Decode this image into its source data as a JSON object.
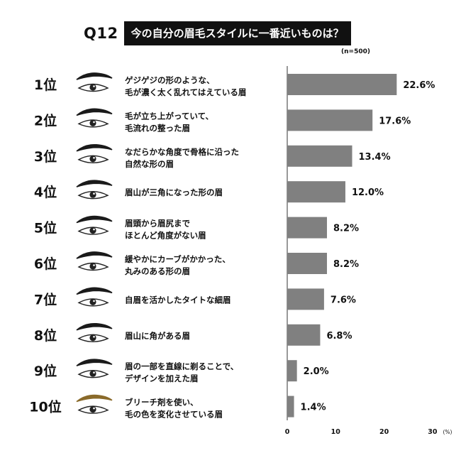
{
  "header": {
    "question_number": "Q12",
    "question_text": "今の自分の眉毛スタイルに一番近いものは？",
    "sample_size": "(n=500)"
  },
  "chart_data": {
    "type": "bar",
    "orientation": "horizontal",
    "unit": "(%)",
    "xlim": [
      0,
      30
    ],
    "xticks": [
      "0",
      "10",
      "20",
      "30"
    ],
    "grid": false,
    "bar_color": "#808080",
    "categories": [
      {
        "rank": "1位",
        "lines": [
          "ゲジゲジの形のような、",
          "毛が濃く太く乱れてはえている眉"
        ],
        "value": 22.6,
        "label": "22.6%",
        "brow_color": "#1a1a1a"
      },
      {
        "rank": "2位",
        "lines": [
          "毛が立ち上がっていて、",
          "毛流れの整った眉"
        ],
        "value": 17.6,
        "label": "17.6%",
        "brow_color": "#1a1a1a"
      },
      {
        "rank": "3位",
        "lines": [
          "なだらかな角度で骨格に沿った",
          "自然な形の眉"
        ],
        "value": 13.4,
        "label": "13.4%",
        "brow_color": "#1a1a1a"
      },
      {
        "rank": "4位",
        "lines": [
          "眉山が三角になった形の眉"
        ],
        "value": 12.0,
        "label": "12.0%",
        "brow_color": "#1a1a1a"
      },
      {
        "rank": "5位",
        "lines": [
          "眉頭から眉尻まで",
          "ほとんど角度がない眉"
        ],
        "value": 8.2,
        "label": "8.2%",
        "brow_color": "#1a1a1a"
      },
      {
        "rank": "6位",
        "lines": [
          "緩やかにカーブがかかった、",
          "丸みのある形の眉"
        ],
        "value": 8.2,
        "label": "8.2%",
        "brow_color": "#1a1a1a"
      },
      {
        "rank": "7位",
        "lines": [
          "自眉を活かしたタイトな細眉"
        ],
        "value": 7.6,
        "label": "7.6%",
        "brow_color": "#1a1a1a"
      },
      {
        "rank": "8位",
        "lines": [
          "眉山に角がある眉"
        ],
        "value": 6.8,
        "label": "6.8%",
        "brow_color": "#1a1a1a"
      },
      {
        "rank": "9位",
        "lines": [
          "眉の一部を直線に剃ることで、",
          "デザインを加えた眉"
        ],
        "value": 2.0,
        "label": "2.0%",
        "brow_color": "#1a1a1a"
      },
      {
        "rank": "10位",
        "lines": [
          "ブリーチ剤を使い、",
          "毛の色を変化させている眉"
        ],
        "value": 1.4,
        "label": "1.4%",
        "brow_color": "#8a6a2a"
      }
    ]
  }
}
